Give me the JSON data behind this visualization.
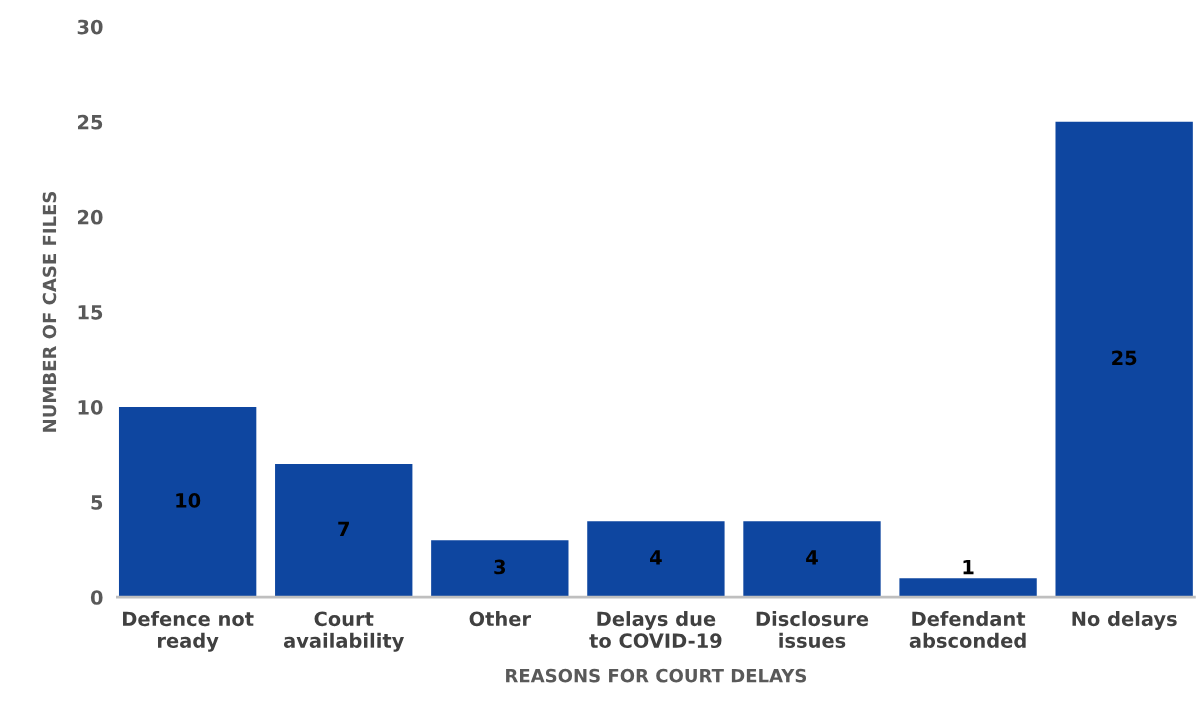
{
  "chart_data": {
    "type": "bar",
    "categories": [
      "Defence not\nready",
      "Court\navailability",
      "Other",
      "Delays due\nto COVID-19",
      "Disclosure\nissues",
      "Defendant\nabsconded",
      "No delays"
    ],
    "values": [
      10,
      7,
      3,
      4,
      4,
      1,
      25
    ],
    "color": "#0e46a0",
    "xlabel": "REASONS FOR COURT DELAYS",
    "ylabel": "NUMBER OF CASE FILES",
    "ylim": [
      0,
      30
    ],
    "yticks": [
      0,
      5,
      10,
      15,
      20,
      25,
      30
    ],
    "data_labels": true,
    "grid": false,
    "legend": false
  }
}
